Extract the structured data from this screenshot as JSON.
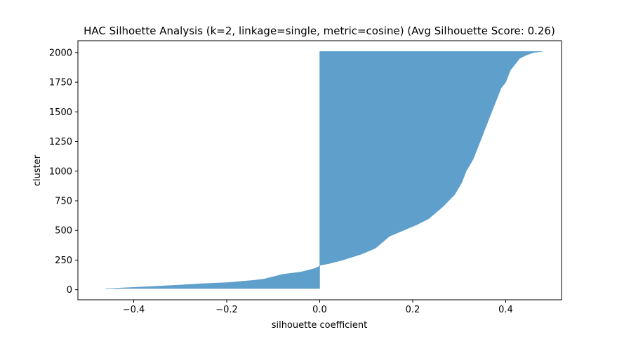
{
  "chart_data": {
    "type": "area",
    "title": "HAC Silhoette Analysis (k=2, linkage=single, metric=cosine) (Avg Silhouette Score: 0.26)",
    "xlabel": "silhouette coefficient",
    "ylabel": "cluster",
    "xlim": [
      -0.52,
      0.52
    ],
    "ylim": [
      -85,
      2100
    ],
    "xticks": [
      -0.4,
      -0.2,
      0.0,
      0.2,
      0.4
    ],
    "xtick_labels": [
      "−0.4",
      "−0.2",
      "0.0",
      "0.2",
      "0.4"
    ],
    "yticks": [
      0,
      250,
      500,
      750,
      1000,
      1250,
      1500,
      1750,
      2000
    ],
    "ytick_labels": [
      "0",
      "250",
      "500",
      "750",
      "1000",
      "1250",
      "1500",
      "1750",
      "2000"
    ],
    "grid": false,
    "color": "#5f9fcc",
    "series": [
      {
        "y": [
          10,
          20,
          30,
          40,
          50,
          60,
          70,
          80,
          90,
          100,
          110,
          120,
          130,
          140,
          150,
          160,
          170,
          180,
          190,
          200,
          205
        ],
        "values": [
          -0.46,
          -0.4,
          -0.35,
          -0.3,
          -0.26,
          -0.2,
          -0.17,
          -0.14,
          -0.12,
          -0.11,
          -0.1,
          -0.09,
          -0.08,
          -0.06,
          -0.04,
          -0.03,
          -0.02,
          -0.01,
          -0.005,
          0.0,
          0.0
        ]
      },
      {
        "y": [
          205,
          220,
          250,
          300,
          350,
          400,
          450,
          500,
          550,
          600,
          700,
          800,
          900,
          1000,
          1100,
          1200,
          1300,
          1400,
          1500,
          1600,
          1700,
          1750,
          1800,
          1850,
          1900,
          1950,
          1980,
          2000,
          2010
        ],
        "values": [
          0.0,
          0.02,
          0.05,
          0.09,
          0.12,
          0.135,
          0.15,
          0.18,
          0.21,
          0.235,
          0.265,
          0.29,
          0.305,
          0.315,
          0.33,
          0.34,
          0.35,
          0.36,
          0.37,
          0.38,
          0.39,
          0.4,
          0.405,
          0.41,
          0.42,
          0.43,
          0.445,
          0.46,
          0.48
        ]
      }
    ]
  }
}
